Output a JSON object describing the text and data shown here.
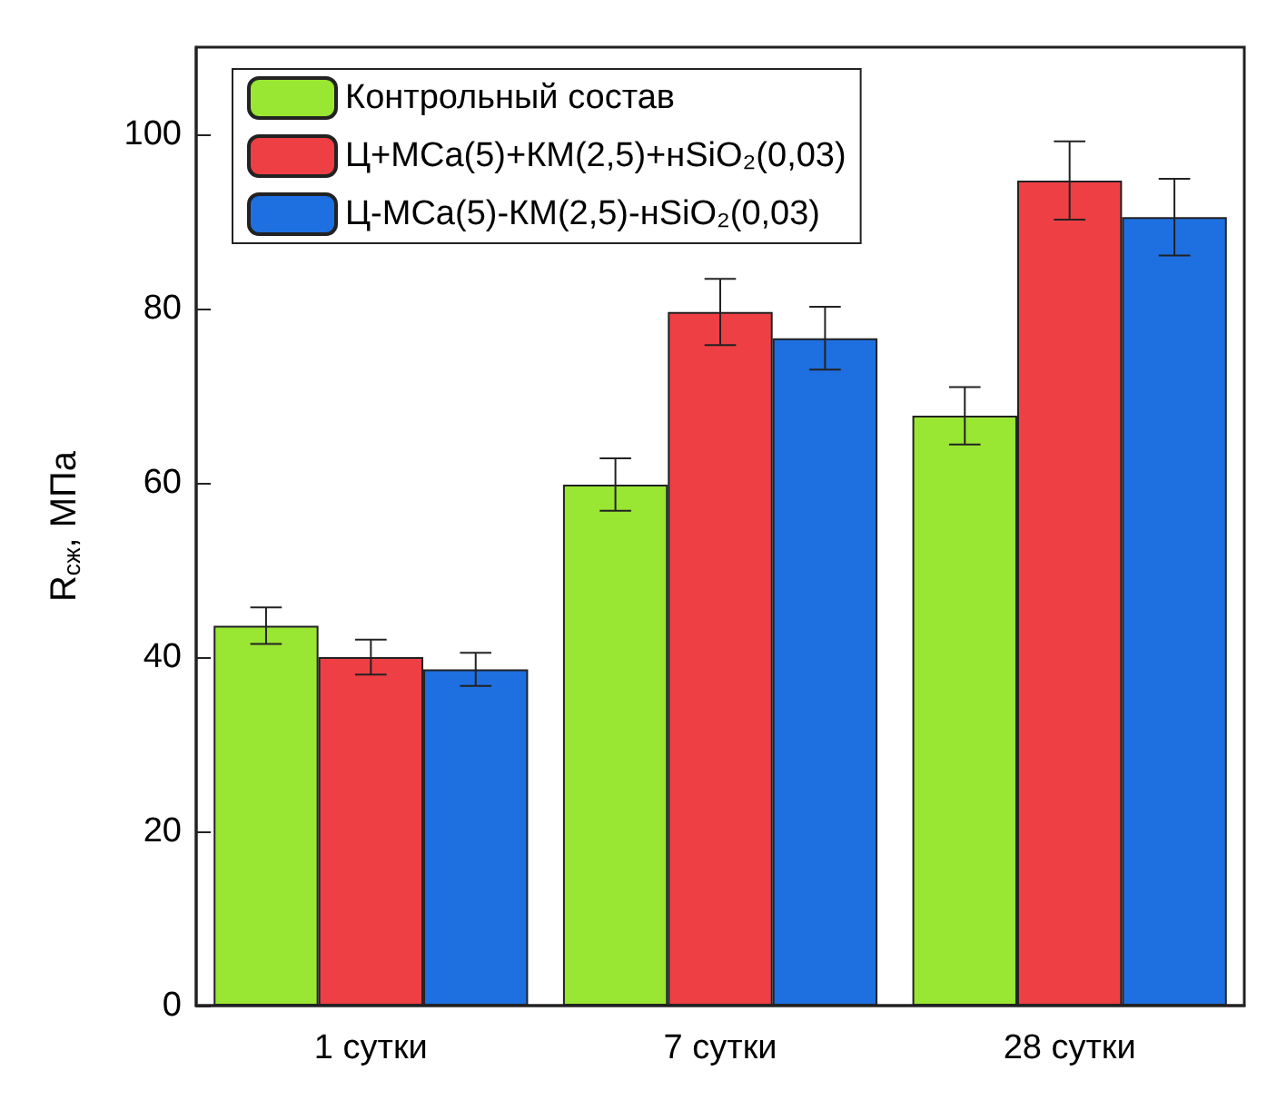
{
  "chart_data": {
    "type": "bar",
    "ylabel": "R$_{сж}$, МПа",
    "categories": [
      "1 сутки",
      "7 сутки",
      "28 сутки"
    ],
    "series": [
      {
        "name": "Контрольный состав",
        "color": "#99e633",
        "values": [
          43.6,
          59.8,
          67.7
        ],
        "errors": [
          2.1,
          3,
          3.3
        ]
      },
      {
        "name": "Ц+МCa(5)+КМ(2,5)+нSiO₂(0,03)",
        "color": "#ee3f44",
        "values": [
          40,
          79.6,
          94.7
        ],
        "errors": [
          2,
          3.8,
          4.5
        ]
      },
      {
        "name": "Ц-МCa(5)-КМ(2,5)-нSiO₂(0,03)",
        "color": "#1e6fe0",
        "values": [
          38.6,
          76.6,
          90.5
        ],
        "errors": [
          1.9,
          3.6,
          4.4
        ]
      }
    ],
    "ylim": [
      0,
      110
    ],
    "yticks": [
      0,
      20,
      40,
      60,
      80,
      100
    ],
    "grid": false,
    "legend": "top left"
  }
}
